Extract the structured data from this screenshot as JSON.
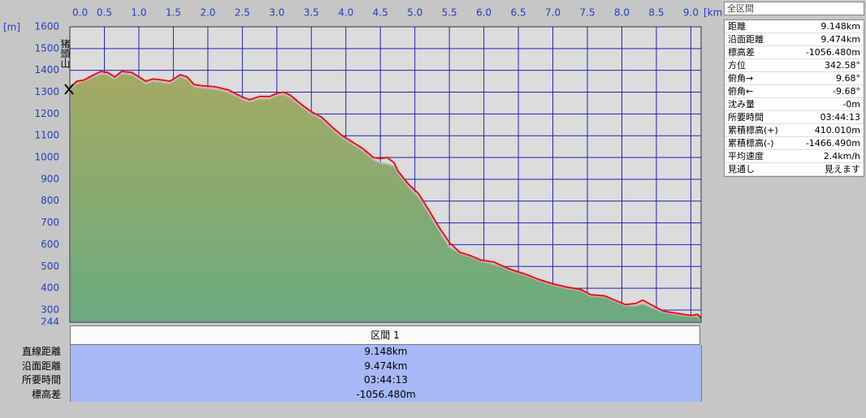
{
  "chart_data": {
    "type": "area-line",
    "x_label": "[km]",
    "y_label": "[m]",
    "annotation": "猪頭山",
    "xlim": [
      0,
      9.148
    ],
    "ylim": [
      244,
      1600
    ],
    "xticks": [
      {
        "value": 0,
        "label": "0.0"
      },
      0.5,
      {
        "value": 1,
        "label": "1.0"
      },
      1.5,
      {
        "value": 2,
        "label": "2.0"
      },
      2.5,
      {
        "value": 3,
        "label": "3.0"
      },
      3.5,
      {
        "value": 4,
        "label": "4.0"
      },
      4.5,
      {
        "value": 5,
        "label": "5.0"
      },
      5.5,
      {
        "value": 6,
        "label": "6.0"
      },
      6.5,
      {
        "value": 7,
        "label": "7.0"
      },
      7.5,
      {
        "value": 8,
        "label": "8.0"
      },
      8.5,
      {
        "value": 9,
        "label": "9.0"
      }
    ],
    "yticks": [
      244,
      300,
      400,
      500,
      600,
      700,
      800,
      900,
      1000,
      1100,
      1200,
      1300,
      1400,
      1500,
      1600
    ],
    "grid": true,
    "x": [
      0,
      0.1,
      0.2,
      0.35,
      0.45,
      0.55,
      0.65,
      0.75,
      0.9,
      1.0,
      1.1,
      1.2,
      1.35,
      1.45,
      1.6,
      1.7,
      1.8,
      1.9,
      2.1,
      2.3,
      2.45,
      2.6,
      2.75,
      2.9,
      3.0,
      3.1,
      3.2,
      3.35,
      3.5,
      3.65,
      3.8,
      3.95,
      4.1,
      4.25,
      4.4,
      4.5,
      4.6,
      4.7,
      4.75,
      4.9,
      5.05,
      5.2,
      5.35,
      5.5,
      5.65,
      5.8,
      5.95,
      6.15,
      6.25,
      6.4,
      6.6,
      6.8,
      7.0,
      7.2,
      7.4,
      7.55,
      7.75,
      7.9,
      8.05,
      8.2,
      8.3,
      8.45,
      8.6,
      8.8,
      9.0,
      9.1,
      9.148
    ],
    "series": [
      {
        "color": "#8aa86a",
        "values": [
          1310,
          1340,
          1350,
          1370,
          1385,
          1380,
          1360,
          1385,
          1380,
          1360,
          1340,
          1350,
          1345,
          1340,
          1370,
          1360,
          1325,
          1320,
          1315,
          1300,
          1275,
          1255,
          1270,
          1270,
          1285,
          1290,
          1275,
          1235,
          1200,
          1175,
          1130,
          1090,
          1060,
          1030,
          990,
          975,
          970,
          960,
          930,
          870,
          820,
          745,
          665,
          590,
          560,
          545,
          525,
          510,
          500,
          480,
          460,
          435,
          415,
          400,
          390,
          365,
          360,
          340,
          320,
          320,
          330,
          310,
          290,
          280,
          270,
          272,
          258
        ]
      },
      {
        "color": "#ee1111",
        "values": [
          1320,
          1350,
          1355,
          1380,
          1395,
          1390,
          1370,
          1395,
          1390,
          1370,
          1350,
          1360,
          1355,
          1350,
          1380,
          1370,
          1335,
          1330,
          1325,
          1310,
          1285,
          1265,
          1280,
          1280,
          1295,
          1300,
          1285,
          1245,
          1210,
          1185,
          1140,
          1100,
          1070,
          1040,
          1000,
          995,
          1000,
          975,
          940,
          880,
          835,
          760,
          680,
          610,
          565,
          550,
          530,
          520,
          505,
          485,
          465,
          440,
          420,
          405,
          395,
          370,
          365,
          345,
          325,
          330,
          345,
          320,
          295,
          285,
          275,
          280,
          262
        ]
      }
    ]
  },
  "summary_panel": {
    "title": "全区間",
    "rows": [
      [
        "距離",
        "9.148km"
      ],
      [
        "沿面距離",
        "9.474km"
      ],
      [
        "標高差",
        "-1056.480m"
      ],
      [
        "方位",
        "342.58°"
      ],
      [
        "俯角→",
        "9.68°"
      ],
      [
        "俯角←",
        "-9.68°"
      ],
      [
        "沈み量",
        "-0m"
      ],
      [
        "所要時間",
        "03:44:13"
      ],
      [
        "累積標高(+)",
        "410.010m"
      ],
      [
        "累積標高(-)",
        "-1466.490m"
      ],
      [
        "平均速度",
        "2.4km/h"
      ],
      [
        "見通し",
        "見えます"
      ]
    ]
  },
  "section_table": {
    "header": "区間 1",
    "rows": [
      [
        "直線距離",
        "9.148km"
      ],
      [
        "沿面距離",
        "9.474km"
      ],
      [
        "所要時間",
        "03:44:13"
      ],
      [
        "標高差",
        "-1056.480m"
      ]
    ]
  }
}
